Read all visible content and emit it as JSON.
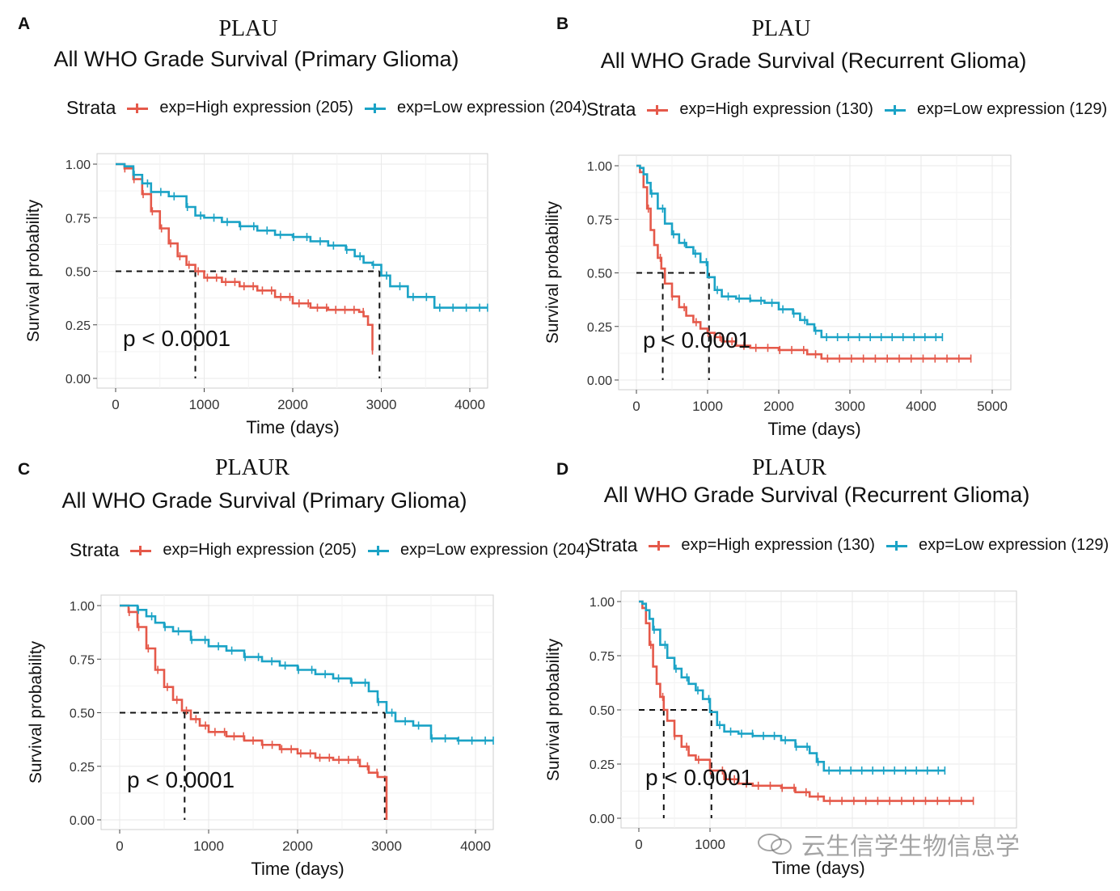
{
  "colors": {
    "high": "#e5594a",
    "low": "#1ba3c6",
    "grid": "#e9e9e9",
    "frame": "#cfcfcf"
  },
  "panels": [
    {
      "label": "A",
      "gene": "PLAU",
      "title": "All WHO Grade Survival (Primary Glioma)",
      "strata_label": "Strata",
      "high_label": "exp=High expression (205)",
      "low_label": "exp=Low expression (204)",
      "p_text": "p < 0.0001"
    },
    {
      "label": "B",
      "gene": "PLAU",
      "title": "All WHO Grade Survival (Recurrent Glioma)",
      "strata_label": "Strata",
      "high_label": "exp=High expression (130)",
      "low_label": "exp=Low expression (129)",
      "p_text": "p < 0.0001"
    },
    {
      "label": "C",
      "gene": "PLAUR",
      "title": "All WHO Grade Survival (Primary Glioma)",
      "strata_label": "Strata",
      "high_label": "exp=High expression (205)",
      "low_label": "exp=Low expression (204)",
      "p_text": "p < 0.0001"
    },
    {
      "label": "D",
      "gene": "PLAUR",
      "title": "All WHO Grade Survival (Recurrent Glioma)",
      "strata_label": "Strata",
      "high_label": "exp=High expression (130)",
      "low_label": "exp=Low expression (129)",
      "p_text": "p < 0.0001"
    }
  ],
  "chart_data": [
    {
      "type": "line",
      "title": "PLAU All WHO Grade Survival (Primary Glioma)",
      "xlabel": "Time (days)",
      "ylabel": "Survival probability",
      "xlim": [
        0,
        4200
      ],
      "ylim": [
        0,
        1
      ],
      "xticks": [
        0,
        1000,
        2000,
        3000,
        4000
      ],
      "yticks": [
        0,
        0.25,
        0.5,
        0.75,
        1
      ],
      "xtick_labels": [
        "0",
        "1000",
        "2000",
        "3000",
        "4000"
      ],
      "ytick_labels": [
        "0.00",
        "0.25",
        "0.50",
        "0.75",
        "1.00"
      ],
      "grid": true,
      "legend_position": "top",
      "p_value": "p < 0.0001",
      "medians": [
        900,
        2980
      ],
      "series": [
        {
          "name": "exp=High expression (205)",
          "color_key": "high",
          "x": [
            0,
            100,
            200,
            300,
            400,
            500,
            600,
            700,
            800,
            900,
            1000,
            1200,
            1400,
            1600,
            1800,
            2000,
            2200,
            2400,
            2600,
            2750,
            2800,
            2850,
            2900
          ],
          "y": [
            1.0,
            0.98,
            0.93,
            0.86,
            0.78,
            0.7,
            0.63,
            0.57,
            0.53,
            0.5,
            0.47,
            0.45,
            0.43,
            0.41,
            0.38,
            0.35,
            0.33,
            0.32,
            0.32,
            0.31,
            0.29,
            0.25,
            0.13
          ]
        },
        {
          "name": "exp=Low expression (204)",
          "color_key": "low",
          "x": [
            0,
            100,
            200,
            300,
            400,
            600,
            800,
            900,
            1000,
            1200,
            1400,
            1600,
            1800,
            2000,
            2200,
            2400,
            2600,
            2700,
            2800,
            2900,
            3000,
            3100,
            3300,
            3600,
            3900,
            4200
          ],
          "y": [
            1.0,
            0.99,
            0.95,
            0.91,
            0.87,
            0.85,
            0.8,
            0.76,
            0.75,
            0.73,
            0.71,
            0.69,
            0.67,
            0.66,
            0.64,
            0.62,
            0.6,
            0.57,
            0.54,
            0.53,
            0.48,
            0.43,
            0.38,
            0.33,
            0.33,
            0.33
          ]
        }
      ]
    },
    {
      "type": "line",
      "title": "PLAU All WHO Grade Survival (Recurrent Glioma)",
      "xlabel": "Time (days)",
      "ylabel": "Survival probability",
      "xlim": [
        0,
        5200
      ],
      "ylim": [
        0,
        1
      ],
      "xticks": [
        0,
        1000,
        2000,
        3000,
        4000,
        5000
      ],
      "yticks": [
        0,
        0.25,
        0.5,
        0.75,
        1
      ],
      "xtick_labels": [
        "0",
        "1000",
        "2000",
        "3000",
        "4000",
        "5000"
      ],
      "ytick_labels": [
        "0.00",
        "0.25",
        "0.50",
        "0.75",
        "1.00"
      ],
      "grid": true,
      "legend_position": "top",
      "p_value": "p < 0.0001",
      "medians": [
        370,
        1020
      ],
      "series": [
        {
          "name": "exp=High expression (130)",
          "color_key": "high",
          "x": [
            0,
            50,
            100,
            150,
            200,
            250,
            300,
            350,
            400,
            500,
            600,
            700,
            800,
            900,
            1000,
            1100,
            1200,
            1400,
            1600,
            2000,
            2400,
            2600,
            3000,
            4000,
            4700
          ],
          "y": [
            1.0,
            0.97,
            0.9,
            0.8,
            0.7,
            0.63,
            0.57,
            0.52,
            0.45,
            0.39,
            0.34,
            0.3,
            0.27,
            0.24,
            0.22,
            0.2,
            0.18,
            0.16,
            0.15,
            0.14,
            0.12,
            0.1,
            0.1,
            0.1,
            0.1
          ]
        },
        {
          "name": "exp=Low expression (129)",
          "color_key": "low",
          "x": [
            0,
            50,
            100,
            150,
            200,
            300,
            400,
            500,
            600,
            700,
            800,
            900,
            1000,
            1100,
            1200,
            1400,
            1600,
            1800,
            2000,
            2200,
            2300,
            2400,
            2500,
            2600,
            3000,
            4000,
            4300
          ],
          "y": [
            1.0,
            0.99,
            0.96,
            0.92,
            0.87,
            0.8,
            0.73,
            0.68,
            0.64,
            0.62,
            0.59,
            0.55,
            0.48,
            0.42,
            0.39,
            0.38,
            0.37,
            0.36,
            0.33,
            0.31,
            0.28,
            0.26,
            0.23,
            0.2,
            0.2,
            0.2,
            0.2
          ]
        }
      ]
    },
    {
      "type": "line",
      "title": "PLAUR All WHO Grade Survival (Primary Glioma)",
      "xlabel": "Time (days)",
      "ylabel": "Survival probability",
      "xlim": [
        0,
        4200
      ],
      "ylim": [
        0,
        1
      ],
      "xticks": [
        0,
        1000,
        2000,
        3000,
        4000
      ],
      "yticks": [
        0,
        0.25,
        0.5,
        0.75,
        1
      ],
      "xtick_labels": [
        "0",
        "1000",
        "2000",
        "3000",
        "4000"
      ],
      "ytick_labels": [
        "0.00",
        "0.25",
        "0.50",
        "0.75",
        "1.00"
      ],
      "grid": true,
      "legend_position": "top",
      "p_value": "p < 0.0001",
      "medians": [
        730,
        2980
      ],
      "series": [
        {
          "name": "exp=High expression (205)",
          "color_key": "high",
          "x": [
            0,
            100,
            200,
            300,
            400,
            500,
            600,
            700,
            800,
            900,
            1000,
            1200,
            1400,
            1600,
            1800,
            2000,
            2200,
            2400,
            2600,
            2700,
            2800,
            2900,
            2980,
            3000
          ],
          "y": [
            1.0,
            0.97,
            0.9,
            0.8,
            0.7,
            0.62,
            0.56,
            0.51,
            0.47,
            0.44,
            0.41,
            0.39,
            0.37,
            0.35,
            0.33,
            0.31,
            0.29,
            0.28,
            0.28,
            0.25,
            0.22,
            0.2,
            0.2,
            0.0
          ]
        },
        {
          "name": "exp=Low expression (204)",
          "color_key": "low",
          "x": [
            0,
            100,
            200,
            300,
            400,
            500,
            600,
            800,
            1000,
            1200,
            1400,
            1600,
            1800,
            2000,
            2200,
            2400,
            2600,
            2800,
            2900,
            3000,
            3100,
            3300,
            3500,
            3800,
            4200
          ],
          "y": [
            1.0,
            1.0,
            0.98,
            0.95,
            0.92,
            0.9,
            0.88,
            0.84,
            0.81,
            0.79,
            0.76,
            0.74,
            0.72,
            0.7,
            0.68,
            0.66,
            0.64,
            0.6,
            0.55,
            0.5,
            0.46,
            0.44,
            0.38,
            0.37,
            0.37
          ]
        }
      ]
    },
    {
      "type": "line",
      "title": "PLAUR All WHO Grade Survival (Recurrent Glioma)",
      "xlabel": "Time (days)",
      "ylabel": "Survival probability",
      "xlim": [
        0,
        5200
      ],
      "ylim": [
        0,
        1
      ],
      "xticks": [
        0,
        1000
      ],
      "yticks": [
        0,
        0.25,
        0.5,
        0.75,
        1
      ],
      "xtick_labels": [
        "0",
        "1000"
      ],
      "ytick_labels": [
        "0.00",
        "0.25",
        "0.50",
        "0.75",
        "1.00"
      ],
      "grid": true,
      "legend_position": "top",
      "p_value": "p < 0.0001",
      "medians": [
        350,
        1020
      ],
      "series": [
        {
          "name": "exp=High expression (130)",
          "color_key": "high",
          "x": [
            0,
            50,
            100,
            150,
            200,
            250,
            300,
            350,
            400,
            500,
            600,
            700,
            800,
            1000,
            1200,
            1400,
            1600,
            2000,
            2200,
            2400,
            2600,
            4700
          ],
          "y": [
            1.0,
            0.97,
            0.9,
            0.8,
            0.7,
            0.62,
            0.56,
            0.5,
            0.45,
            0.38,
            0.33,
            0.29,
            0.27,
            0.22,
            0.18,
            0.16,
            0.15,
            0.14,
            0.12,
            0.1,
            0.08,
            0.08
          ]
        },
        {
          "name": "exp=Low expression (129)",
          "color_key": "low",
          "x": [
            0,
            50,
            100,
            150,
            200,
            300,
            400,
            500,
            600,
            700,
            800,
            900,
            1000,
            1100,
            1200,
            1400,
            1600,
            1800,
            2000,
            2200,
            2400,
            2500,
            2600,
            3000,
            4000,
            4300
          ],
          "y": [
            1.0,
            0.99,
            0.96,
            0.92,
            0.87,
            0.8,
            0.74,
            0.69,
            0.65,
            0.62,
            0.59,
            0.55,
            0.49,
            0.43,
            0.4,
            0.39,
            0.38,
            0.38,
            0.36,
            0.33,
            0.3,
            0.26,
            0.22,
            0.22,
            0.22,
            0.22
          ]
        }
      ]
    }
  ],
  "watermark": {
    "text": "云生信学生物信息学",
    "icon": "wechat-icon"
  }
}
